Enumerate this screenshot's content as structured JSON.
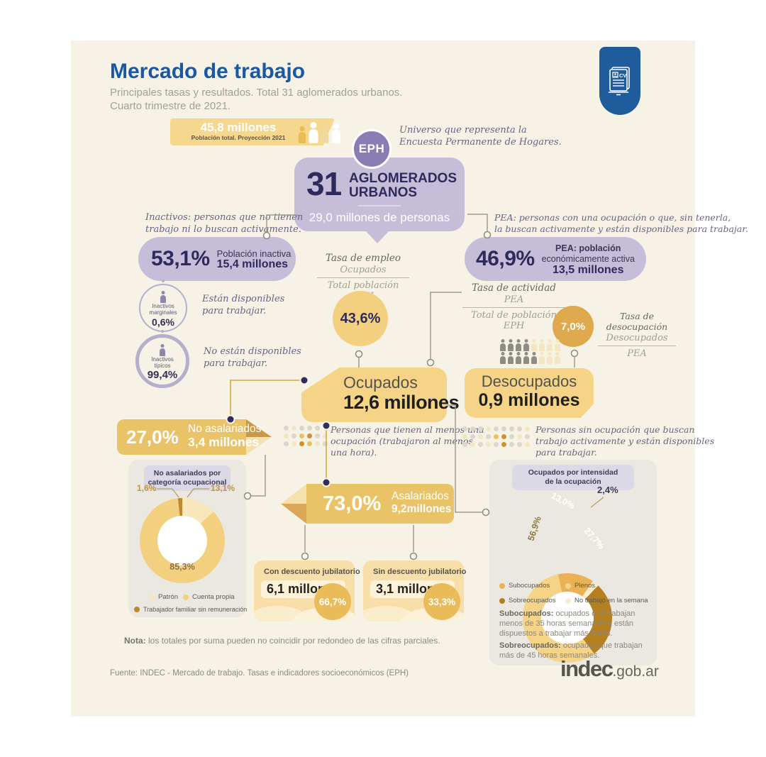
{
  "header": {
    "title": "Mercado de trabajo",
    "subtitle1": "Principales tasas y resultados. Total 31 aglomerados urbanos.",
    "subtitle2": "Cuarto trimestre de 2021."
  },
  "banner": {
    "value": "45,8 millones",
    "label": "Población total. Proyección 2021"
  },
  "eph": {
    "badge": "EPH",
    "note1": "Universo que representa la",
    "note2": "Encuesta Permanente de Hogares.",
    "number": "31",
    "name1": "AGLOMERADOS",
    "name2": "URBANOS",
    "total": "29,0 millones de personas"
  },
  "inactivos": {
    "note1": "Inactivos: personas que no tienen",
    "note2": "trabajo ni lo buscan activamente.",
    "rate": "53,1%",
    "label": "Población inactiva",
    "amount": "15,4 millones",
    "marginales": {
      "l1": "Inactivos",
      "l2": "marginales",
      "rate": "0,6%",
      "d1": "Están disponibles",
      "d2": "para trabajar."
    },
    "tipicos": {
      "l1": "Inactivos",
      "l2": "típicos",
      "rate": "99,4%",
      "d1": "No están disponibles",
      "d2": "para trabajar."
    }
  },
  "tasa_empleo": {
    "title": "Tasa de empleo",
    "num": "Ocupados",
    "den": "Total población EPH",
    "value": "43,6%"
  },
  "pea": {
    "note1": "PEA: personas con una ocupación o que, sin tenerla,",
    "note2": "la buscan activamente y están disponibles para trabajar.",
    "rate": "46,9%",
    "l1": "PEA: población",
    "l2": "económicamente activa",
    "amount": "13,5 millones"
  },
  "tasa_actividad": {
    "title": "Tasa de actividad",
    "num": "PEA",
    "den": "Total de población EPH"
  },
  "tasa_desocupacion": {
    "value": "7,0%",
    "title": "Tasa de desocupación",
    "num": "Desocupados",
    "den": "PEA"
  },
  "ocupados": {
    "title": "Ocupados",
    "amount": "12,6 millones",
    "d1": "Personas que tienen al menos una",
    "d2": "ocupación (trabajaron al menos",
    "d3": "una hora)."
  },
  "desocupados": {
    "title": "Desocupados",
    "amount": "0,9 millones",
    "d1": "Personas sin ocupación que buscan",
    "d2": "trabajo activamente y están disponibles",
    "d3": "para trabajar."
  },
  "no_asalariados": {
    "rate": "27,0%",
    "label": "No asalariados",
    "amount": "3,4 millones"
  },
  "asalariados": {
    "rate": "73,0%",
    "label": "Asalariados",
    "amount": "9,2millones"
  },
  "left_panel": {
    "h1": "No asalariados por",
    "h2": "categoría ocupacional",
    "pct_familiar": "1,6%",
    "pct_patron": "13,1%",
    "pct_cuenta": "85,3%",
    "legend": [
      {
        "label": "Patrón"
      },
      {
        "label": "Cuenta propia"
      },
      {
        "label": "Trabajador familiar sin remuneración"
      }
    ]
  },
  "jub": {
    "con": {
      "title": "Con descuento jubilatorio",
      "amount": "6,1 millones",
      "pct": "66,7%"
    },
    "sin": {
      "title": "Sin descuento jubilatorio",
      "amount": "3,1 millones",
      "pct": "33,3%"
    }
  },
  "right_panel": {
    "h1": "Ocupados por intensidad",
    "h2": "de la ocupación",
    "pct_sub": "13,0%",
    "pct_plenos": "56,9%",
    "pct_sobre": "27,7%",
    "pct_no": "2,4%",
    "legend": [
      {
        "label": "Subocupados"
      },
      {
        "label": "Plenos"
      },
      {
        "label": "Sobreocupados"
      },
      {
        "label": "No trabajó en la semana"
      }
    ],
    "defs": [
      {
        "term": "Subocupados:",
        "rest": " ocupados que trabajan menos de 35 horas semanales y están dispuestos a trabajar más horas."
      },
      {
        "term": "Sobreocupados:",
        "rest": " ocupados que trabajan más de 45 horas semanales."
      }
    ]
  },
  "footer": {
    "nota_b": "Nota:",
    "nota_r": " los totales por suma pueden no coincidir por redondeo de las cifras parciales.",
    "fuente": "Fuente: INDEC - Mercado de trabajo. Tasas e indicadores socioeconómicos (EPH)",
    "logo_b": "indec",
    "logo_r": ".gob.ar"
  },
  "colors": {
    "canvas": "#f6f2e6",
    "accent_blue": "#1a57a5",
    "badge_blue": "#1f5c9c",
    "purple": "#8b7cb4",
    "purple_light": "#c6bdd9",
    "navy": "#2e2a5c",
    "main_yellow": "#f5d488",
    "orange_circle": "#dfa94e",
    "donut_main": "#f3d07f",
    "donut_light": "#f8e6bd",
    "donut_dark": "#c0872f",
    "donut_orange": "#e9b254",
    "donut_pale": "#f8edd2",
    "donut_brown": "#b5801f"
  },
  "chart_data": [
    {
      "type": "pie",
      "title": "No asalariados por categoría ocupacional",
      "labels": [
        "Cuenta propia",
        "Patrón",
        "Trabajador familiar sin remuneración"
      ],
      "values": [
        85.3,
        13.1,
        1.6
      ],
      "legend_position": "bottom"
    },
    {
      "type": "pie",
      "title": "Ocupados por intensidad de la ocupación",
      "labels": [
        "Plenos",
        "Sobreocupados",
        "Subocupados",
        "No trabajó en la semana"
      ],
      "values": [
        56.9,
        27.7,
        13.0,
        2.4
      ],
      "legend_position": "bottom"
    }
  ],
  "decor": {
    "palette": {
      "g": "#dbd7c9",
      "l": "#f3e6c2",
      "y": "#ecc25f",
      "o": "#cf9132",
      "d": "#8f8c83",
      "w": "#ffffff",
      "a": "#e7bd55"
    },
    "ocupados_dots": [
      "g",
      "l",
      "g",
      "g",
      "g",
      "l",
      "l",
      "g",
      "y",
      "o",
      "g",
      "l",
      "g",
      "l",
      "o",
      "y",
      "l",
      "g"
    ],
    "desocupados_dots": [
      "g",
      "g",
      "g",
      "l",
      "g",
      "g",
      "g",
      "g",
      "l",
      "l",
      "g",
      "l",
      "g",
      "y",
      "o",
      "g",
      "l",
      "g",
      "g",
      "l",
      "g",
      "l",
      "g",
      "o",
      "g",
      "g",
      "l"
    ],
    "people": [
      "d",
      "d",
      "d",
      "d",
      "l",
      "l",
      "l",
      "l",
      "d",
      "d",
      "d",
      "d",
      "d",
      "l",
      "l",
      "l"
    ]
  }
}
